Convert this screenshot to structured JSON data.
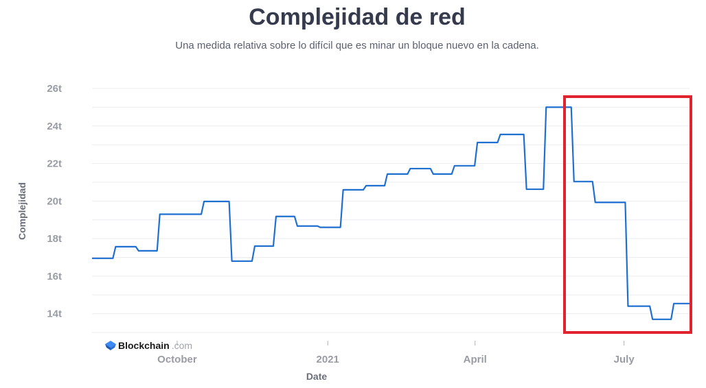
{
  "title": "Complejidad de red",
  "subtitle": "Una medida relativa sobre lo difícil que es minar un bloque nuevo en la cadena.",
  "watermark": {
    "brand": "Blockchain",
    "suffix": ".com"
  },
  "annotation": {
    "type": "highlight-rectangle",
    "color": "#e0232e",
    "from": "2021-05-24",
    "to": "2021-08-10"
  },
  "chart_data": {
    "type": "line",
    "step": true,
    "title": "Complejidad de red",
    "xlabel": "Date",
    "ylabel": "Complejidad",
    "ylim": [
      13,
      26
    ],
    "xlim": [
      "2020-08-10",
      "2021-08-10"
    ],
    "grid": true,
    "line_color": "#1f6fd1",
    "y_ticks": [
      {
        "value": 14,
        "label": "14t"
      },
      {
        "value": 16,
        "label": "16t"
      },
      {
        "value": 18,
        "label": "18t"
      },
      {
        "value": 20,
        "label": "20t"
      },
      {
        "value": 22,
        "label": "22t"
      },
      {
        "value": 24,
        "label": "24t"
      },
      {
        "value": 26,
        "label": "26t"
      }
    ],
    "x_ticks": [
      {
        "date": "2020-10-01",
        "label": "October"
      },
      {
        "date": "2021-01-01",
        "label": "2021"
      },
      {
        "date": "2021-04-01",
        "label": "April"
      },
      {
        "date": "2021-07-01",
        "label": "July"
      }
    ],
    "series": [
      {
        "x": [
          "2020-08-10",
          "2020-08-24",
          "2020-09-07",
          "2020-09-20",
          "2020-10-17",
          "2020-11-03",
          "2020-11-17",
          "2020-11-30",
          "2020-12-13",
          "2020-12-27",
          "2021-01-10",
          "2021-01-24",
          "2021-02-06",
          "2021-02-20",
          "2021-03-06",
          "2021-03-19",
          "2021-04-02",
          "2021-04-16",
          "2021-05-02",
          "2021-05-14",
          "2021-05-31",
          "2021-06-13",
          "2021-07-03",
          "2021-07-18",
          "2021-07-31",
          "2021-08-10"
        ],
        "y": [
          16.95,
          17.57,
          17.35,
          19.3,
          19.98,
          16.8,
          17.6,
          19.18,
          18.67,
          18.6,
          20.6,
          20.82,
          21.44,
          21.73,
          21.44,
          21.88,
          23.12,
          23.55,
          20.63,
          25.0,
          21.04,
          19.93,
          14.4,
          13.7,
          14.54,
          14.54
        ]
      }
    ]
  }
}
